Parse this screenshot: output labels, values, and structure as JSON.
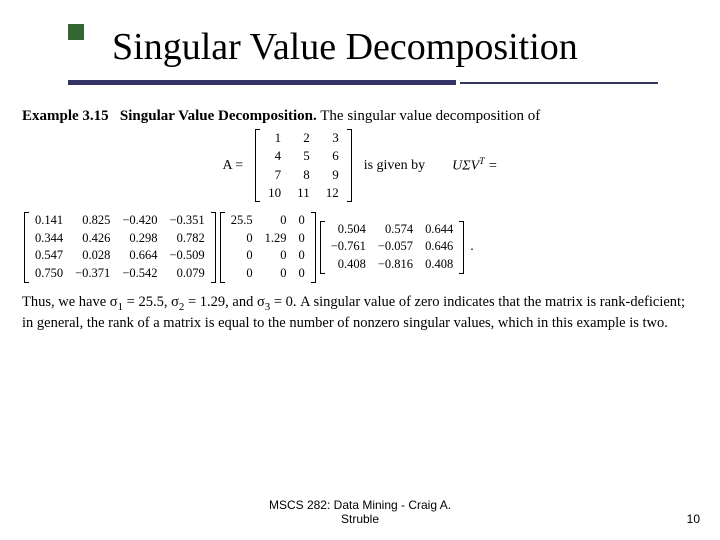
{
  "title": "Singular Value Decomposition",
  "accent_color": "#336633",
  "rule_color": "#333366",
  "example_label": "Example 3.15",
  "example_title": "Singular Value Decomposition.",
  "example_tail": "The singular value decomposition of",
  "lhs": "A =",
  "A": [
    [
      "1",
      "2",
      "3"
    ],
    [
      "4",
      "5",
      "6"
    ],
    [
      "7",
      "8",
      "9"
    ],
    [
      "10",
      "11",
      "12"
    ]
  ],
  "given_text": "is given by",
  "usv": "UΣVᵀ =",
  "U": [
    [
      "0.141",
      "0.825",
      "−0.420",
      "−0.351"
    ],
    [
      "0.344",
      "0.426",
      "0.298",
      "0.782"
    ],
    [
      "0.547",
      "0.028",
      "0.664",
      "−0.509"
    ],
    [
      "0.750",
      "−0.371",
      "−0.542",
      "0.079"
    ]
  ],
  "S": [
    [
      "25.5",
      "0",
      "0"
    ],
    [
      "0",
      "1.29",
      "0"
    ],
    [
      "0",
      "0",
      "0"
    ],
    [
      "0",
      "0",
      "0"
    ]
  ],
  "V": [
    [
      "0.504",
      "0.574",
      "0.644"
    ],
    [
      "−0.761",
      "−0.057",
      "0.646"
    ],
    [
      "0.408",
      "−0.816",
      "0.408"
    ]
  ],
  "sigma_text_pre": "Thus, we have σ",
  "sigma_text_1": " = 25.5, σ",
  "sigma_text_2": " = 1.29, and σ",
  "sigma_text_3": " = 0. A singular value of zero indicates that the matrix is rank-deficient; in general, the rank of a matrix is equal to the number of nonzero singular values, which in this example is two.",
  "footer_line1": "MSCS 282: Data Mining - Craig A.",
  "footer_line2": "Struble",
  "page": "10"
}
